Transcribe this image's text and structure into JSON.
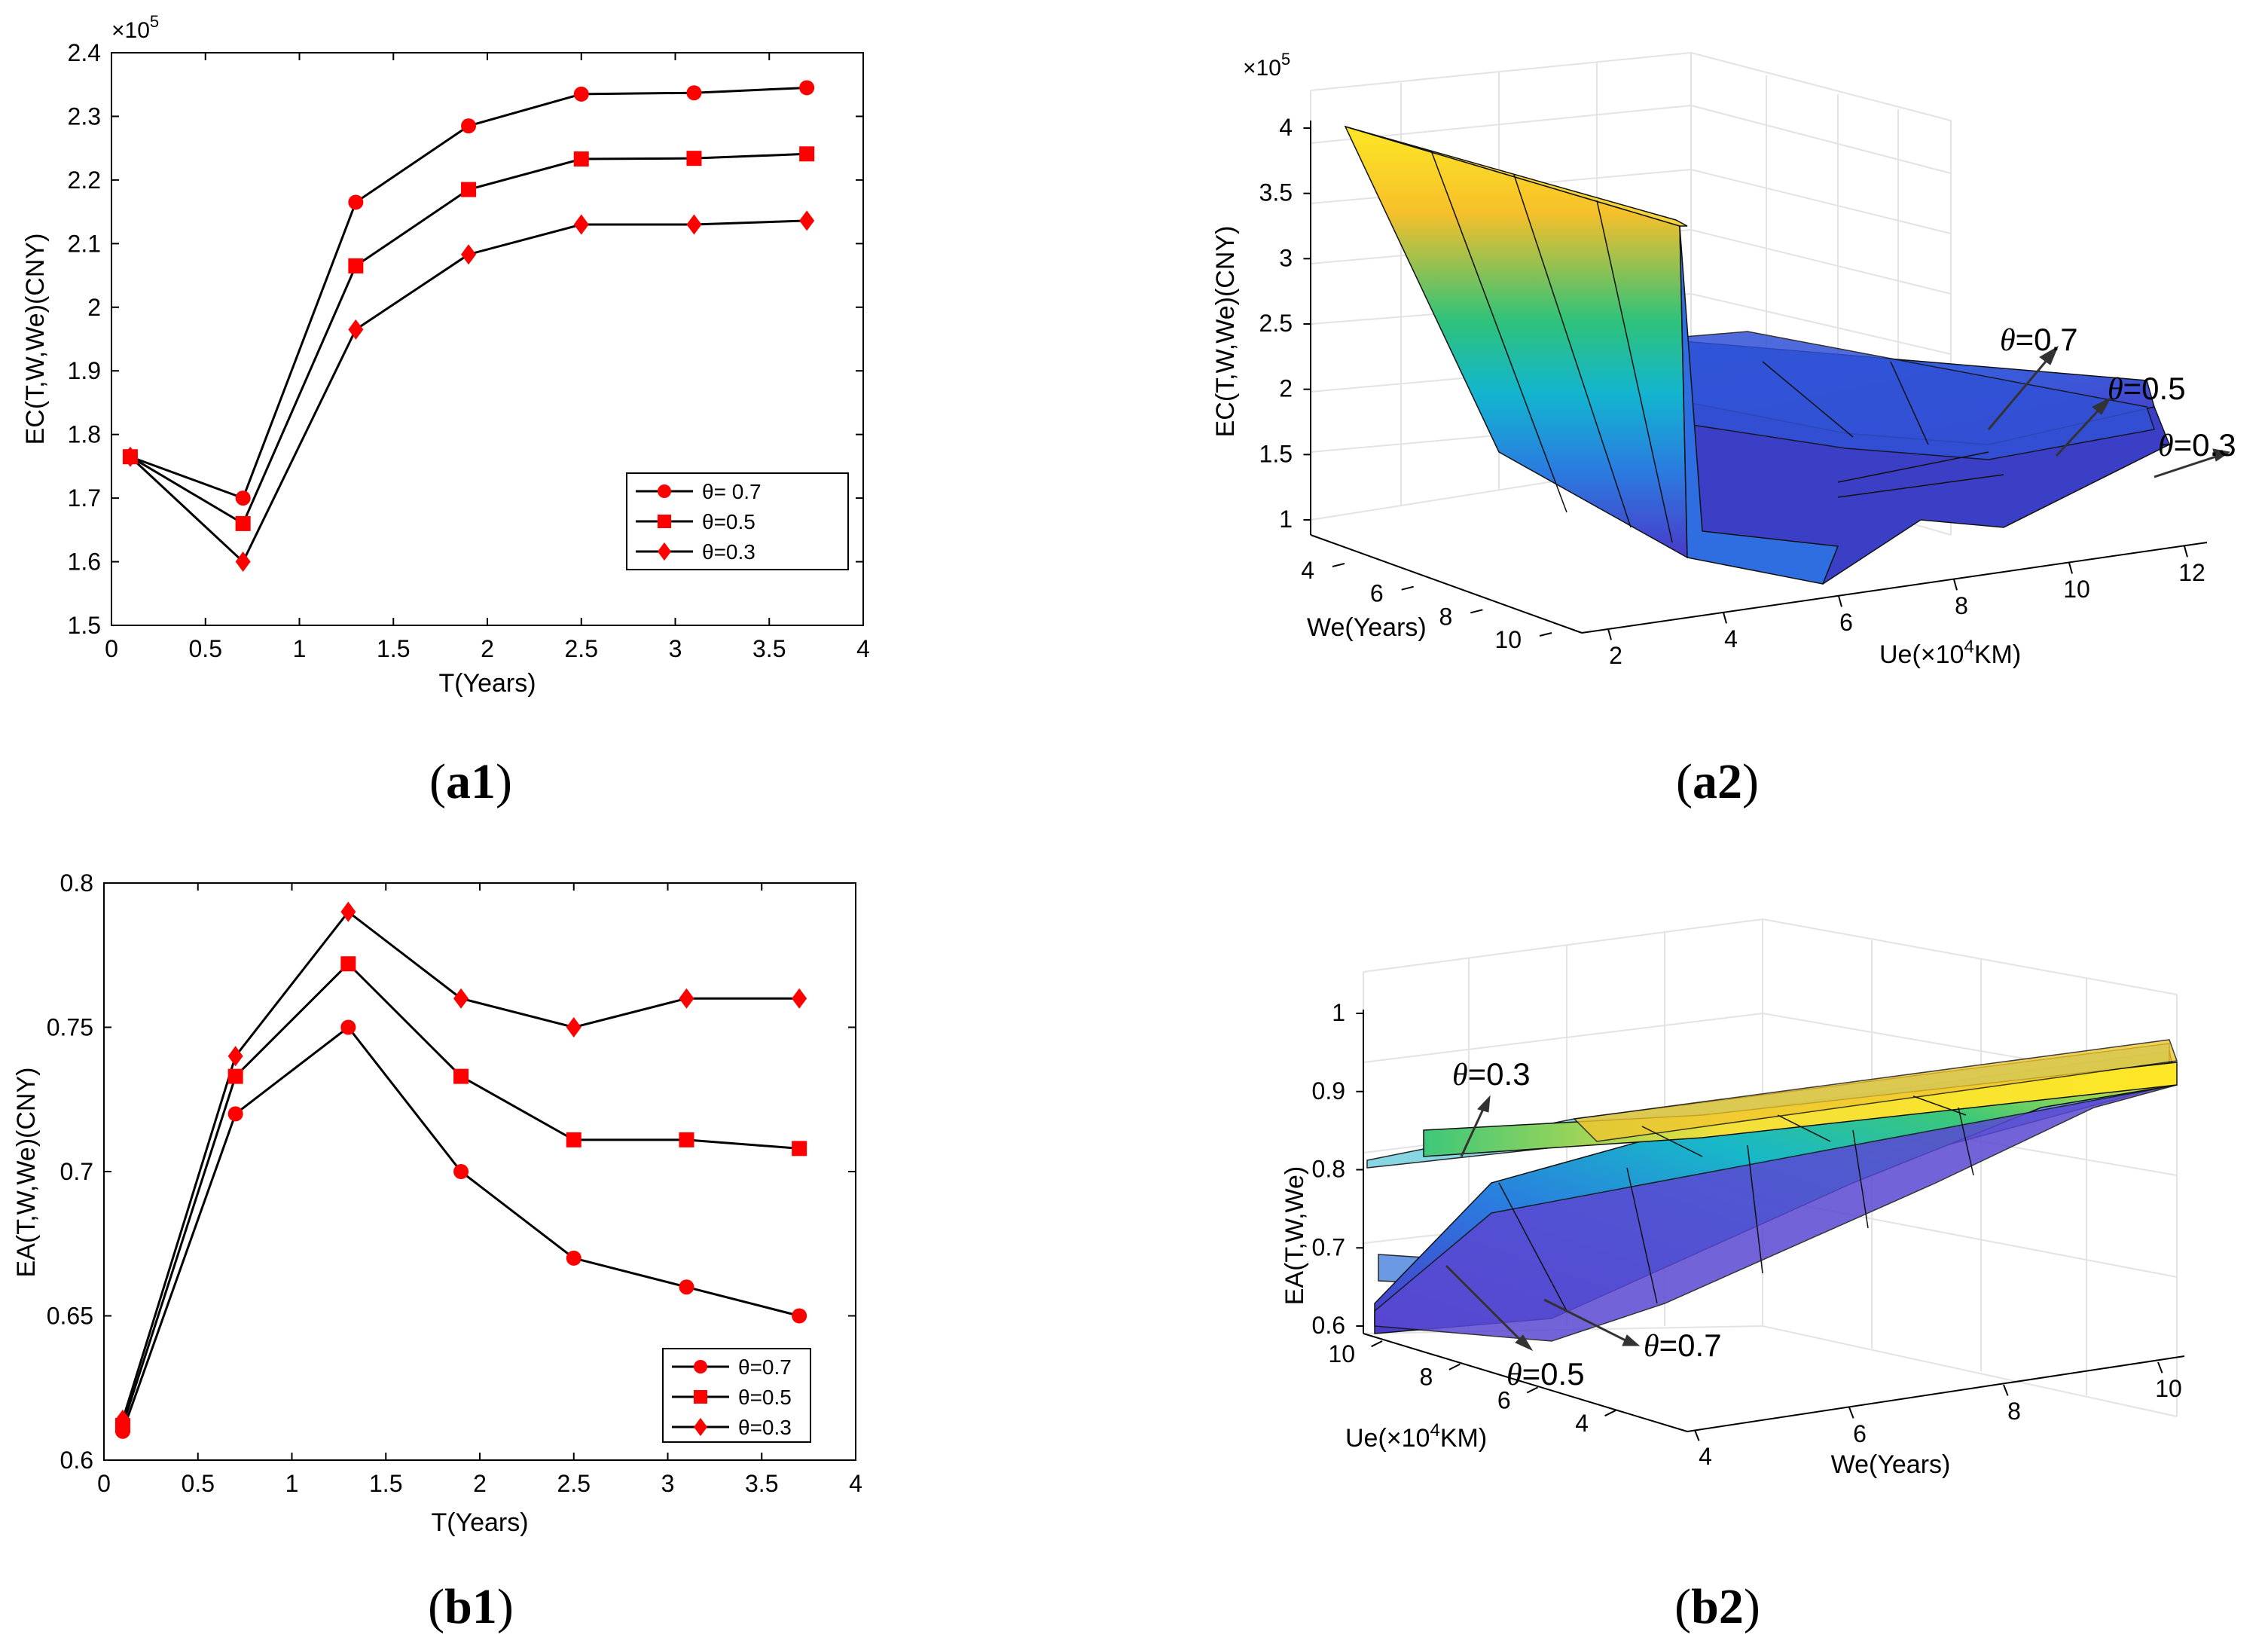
{
  "captions": {
    "a1": {
      "open": "(",
      "label": "a1",
      "close": ")"
    },
    "a2": {
      "open": "(",
      "label": "a2",
      "close": ")"
    },
    "b1": {
      "open": "(",
      "label": "b1",
      "close": ")"
    },
    "b2": {
      "open": "(",
      "label": "b2",
      "close": ")"
    }
  },
  "colors": {
    "line": "#000000",
    "marker": "#ff0000",
    "axis": "#000000",
    "grid": "#e6e6e6"
  },
  "chart_data": [
    {
      "id": "a1",
      "type": "line",
      "xlabel": "T(Years)",
      "ylabel": "EC(T,W,We)(CNY)",
      "multiplier": "×10",
      "multiplier_exp": "5",
      "xlim": [
        0,
        4
      ],
      "ylim": [
        1.5,
        2.4
      ],
      "xticks": [
        "0",
        "0.5",
        "1",
        "1.5",
        "2",
        "2.5",
        "3",
        "3.5",
        "4"
      ],
      "xtick_values": [
        0,
        0.5,
        1,
        1.5,
        2,
        2.5,
        3,
        3.5,
        4
      ],
      "yticks": [
        "1.5",
        "1.6",
        "1.7",
        "1.8",
        "1.9",
        "2",
        "2.1",
        "2.2",
        "2.3",
        "2.4"
      ],
      "ytick_values": [
        1.5,
        1.6,
        1.7,
        1.8,
        1.9,
        2.0,
        2.1,
        2.2,
        2.3,
        2.4
      ],
      "legend_position": "bottom-right",
      "x": [
        0.1,
        0.7,
        1.3,
        1.9,
        2.5,
        3.1,
        3.7
      ],
      "series": [
        {
          "name": "θ= 0.7",
          "marker": "circle",
          "values": [
            1.765,
            1.7,
            2.165,
            2.285,
            2.335,
            2.337,
            2.345
          ]
        },
        {
          "name": "θ=0.5",
          "marker": "square",
          "values": [
            1.765,
            1.66,
            2.065,
            2.185,
            2.233,
            2.234,
            2.241
          ]
        },
        {
          "name": "θ=0.3",
          "marker": "diamond",
          "values": [
            1.765,
            1.6,
            1.965,
            2.083,
            2.13,
            2.13,
            2.136
          ]
        }
      ]
    },
    {
      "id": "a2",
      "type": "surface",
      "zlabel": "EC(T,W,We)(CNY)",
      "zmultiplier": "×10",
      "zmultiplier_exp": "5",
      "xlabel": "We(Years)",
      "ylabel_pre": "Ue(×10",
      "ylabel_exp": "4",
      "ylabel_post": "KM)",
      "zticks": [
        "1",
        "1.5",
        "2",
        "2.5",
        "3",
        "3.5",
        "4"
      ],
      "wticks": [
        "4",
        "6",
        "8",
        "10"
      ],
      "uticks": [
        "2",
        "4",
        "6",
        "8",
        "10",
        "12"
      ],
      "annotations": [
        {
          "theta": "θ",
          "text": "=0.7"
        },
        {
          "theta": "θ",
          "text": "=0.5"
        },
        {
          "theta": "θ",
          "text": "=0.3"
        }
      ]
    },
    {
      "id": "b1",
      "type": "line",
      "xlabel": "T(Years)",
      "ylabel": "EA(T,W,We)(CNY)",
      "xlim": [
        0,
        4
      ],
      "ylim": [
        0.6,
        0.8
      ],
      "xticks": [
        "0",
        "0.5",
        "1",
        "1.5",
        "2",
        "2.5",
        "3",
        "3.5",
        "4"
      ],
      "xtick_values": [
        0,
        0.5,
        1,
        1.5,
        2,
        2.5,
        3,
        3.5,
        4
      ],
      "yticks": [
        "0.6",
        "0.65",
        "0.7",
        "0.75",
        "0.8"
      ],
      "ytick_values": [
        0.6,
        0.65,
        0.7,
        0.75,
        0.8
      ],
      "legend_position": "bottom-right",
      "x": [
        0.1,
        0.7,
        1.3,
        1.9,
        2.5,
        3.1,
        3.7
      ],
      "series": [
        {
          "name": "θ=0.7",
          "marker": "circle",
          "values": [
            0.61,
            0.72,
            0.75,
            0.7,
            0.67,
            0.66,
            0.65
          ]
        },
        {
          "name": "θ=0.5",
          "marker": "square",
          "values": [
            0.612,
            0.733,
            0.772,
            0.733,
            0.711,
            0.711,
            0.708
          ]
        },
        {
          "name": "θ=0.3",
          "marker": "diamond",
          "values": [
            0.614,
            0.74,
            0.79,
            0.76,
            0.75,
            0.76,
            0.76
          ]
        }
      ]
    },
    {
      "id": "b2",
      "type": "surface",
      "zlabel": "EA(T,W,We)",
      "ulabel_pre": "Ue(×10",
      "ulabel_exp": "4",
      "ulabel_post": "KM)",
      "wlabel": "We(Years)",
      "zticks": [
        "0.6",
        "0.7",
        "0.8",
        "0.9",
        "1"
      ],
      "uticks": [
        "10",
        "8",
        "6",
        "4"
      ],
      "wticks": [
        "4",
        "6",
        "8",
        "10"
      ],
      "annotations": [
        {
          "theta": "θ",
          "text": "=0.3"
        },
        {
          "theta": "θ",
          "text": "=0.5"
        },
        {
          "theta": "θ",
          "text": "=0.7"
        }
      ]
    }
  ]
}
